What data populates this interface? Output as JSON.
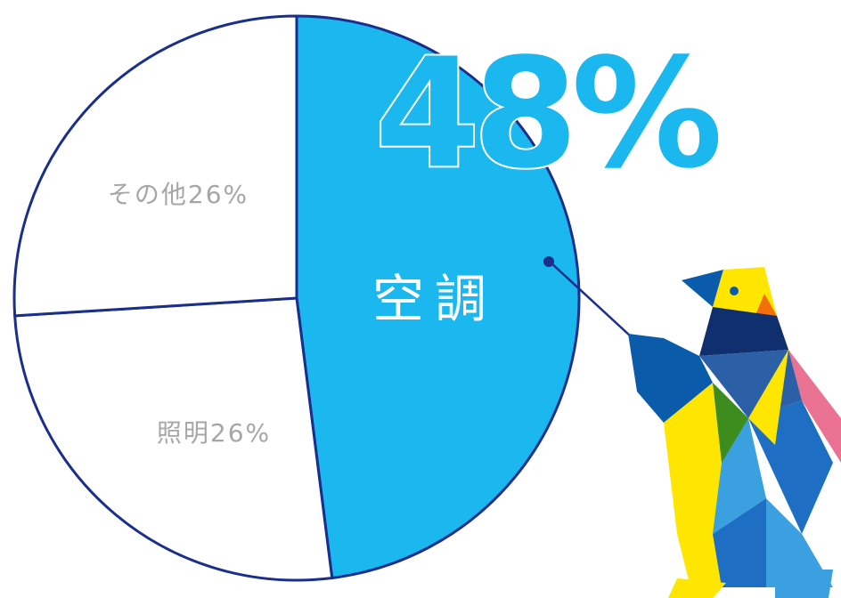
{
  "chart_data": {
    "type": "pie",
    "categories": [
      "空調",
      "照明",
      "その他"
    ],
    "values": [
      48,
      26,
      26
    ],
    "value_labels": [
      "48%",
      "26%",
      "26%"
    ],
    "colors": [
      "#1ab8ee",
      "#ffffff",
      "#ffffff"
    ]
  }
}
